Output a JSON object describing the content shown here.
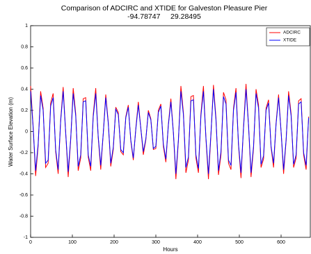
{
  "chart_data": {
    "type": "line",
    "title": "Comparison of ADCIRC and XTIDE for Galveston Pleasure Pier",
    "subtitle": "-94.78747     29.28495",
    "x_label": "Hours",
    "y_label": "Water Surface Elevation (m)",
    "xlim": [
      0,
      670
    ],
    "ylim": [
      -1,
      1
    ],
    "xticks": [
      0,
      100,
      200,
      300,
      400,
      500,
      600
    ],
    "yticks": [
      -1,
      -0.8,
      -0.6,
      -0.4,
      -0.2,
      0,
      0.2,
      0.4,
      0.6,
      0.8,
      1
    ],
    "legend": "upper right",
    "grid": false,
    "x": [
      0,
      6,
      12,
      18,
      24,
      30,
      36,
      42,
      48,
      54,
      60,
      66,
      72,
      78,
      84,
      90,
      96,
      102,
      108,
      114,
      120,
      126,
      132,
      138,
      144,
      150,
      156,
      162,
      168,
      174,
      180,
      186,
      192,
      198,
      204,
      210,
      216,
      222,
      228,
      234,
      240,
      246,
      252,
      258,
      264,
      270,
      276,
      282,
      288,
      294,
      300,
      306,
      312,
      318,
      324,
      330,
      336,
      342,
      348,
      354,
      360,
      366,
      372,
      378,
      384,
      390,
      396,
      402,
      408,
      414,
      420,
      426,
      432,
      438,
      444,
      450,
      456,
      462,
      468,
      474,
      480,
      486,
      492,
      498,
      504,
      510,
      516,
      522,
      528,
      534,
      540,
      546,
      552,
      558,
      564,
      570,
      576,
      582,
      588,
      594,
      600,
      606,
      612,
      618,
      624,
      630,
      636,
      642,
      648,
      654,
      660,
      666
    ],
    "series": [
      {
        "name": "ADCIRC",
        "color": "#ff0000",
        "values": [
          0.43,
          0.05,
          -0.42,
          -0.14,
          0.38,
          0.22,
          -0.34,
          -0.3,
          0.27,
          0.36,
          -0.19,
          -0.4,
          0.11,
          0.42,
          -0.01,
          -0.43,
          -0.08,
          0.41,
          0.17,
          -0.37,
          -0.25,
          0.31,
          0.32,
          -0.24,
          -0.37,
          0.16,
          0.41,
          -0.06,
          -0.36,
          -0.02,
          0.35,
          0.09,
          -0.33,
          -0.17,
          0.23,
          0.18,
          -0.19,
          -0.22,
          0.14,
          0.25,
          -0.09,
          -0.27,
          0.03,
          0.28,
          0.03,
          -0.22,
          -0.08,
          0.2,
          0.12,
          -0.17,
          -0.16,
          0.2,
          0.26,
          -0.14,
          -0.29,
          0.07,
          0.31,
          -0.01,
          -0.45,
          -0.09,
          0.43,
          0.18,
          -0.39,
          -0.27,
          0.33,
          0.34,
          -0.25,
          -0.39,
          0.17,
          0.43,
          -0.07,
          -0.45,
          -0.03,
          0.44,
          0.13,
          -0.41,
          -0.22,
          0.37,
          0.3,
          -0.3,
          -0.36,
          0.22,
          0.41,
          -0.13,
          -0.44,
          0.04,
          0.45,
          0.06,
          -0.43,
          -0.16,
          0.4,
          0.25,
          -0.34,
          -0.26,
          0.22,
          0.3,
          -0.15,
          -0.34,
          0.08,
          0.35,
          0,
          -0.4,
          -0.09,
          0.38,
          0.17,
          -0.34,
          -0.25,
          0.29,
          0.31,
          -0.22,
          -0.36,
          0.14
        ]
      },
      {
        "name": "XTIDE",
        "color": "#0000ff",
        "values": [
          0.38,
          0.04,
          -0.37,
          -0.12,
          0.34,
          0.2,
          -0.3,
          -0.27,
          0.24,
          0.32,
          -0.17,
          -0.36,
          0.1,
          0.38,
          -0.01,
          -0.38,
          -0.07,
          0.36,
          0.15,
          -0.33,
          -0.22,
          0.28,
          0.29,
          -0.22,
          -0.33,
          0.14,
          0.36,
          -0.05,
          -0.32,
          -0.02,
          0.32,
          0.08,
          -0.3,
          -0.15,
          0.21,
          0.16,
          -0.17,
          -0.2,
          0.13,
          0.23,
          -0.08,
          -0.25,
          0.02,
          0.25,
          0.03,
          -0.19,
          -0.07,
          0.18,
          0.11,
          -0.16,
          -0.14,
          0.18,
          0.24,
          -0.12,
          -0.26,
          0.06,
          0.28,
          -0.01,
          -0.4,
          -0.08,
          0.38,
          0.16,
          -0.34,
          -0.24,
          0.29,
          0.3,
          -0.22,
          -0.35,
          0.15,
          0.38,
          -0.06,
          -0.4,
          -0.02,
          0.4,
          0.11,
          -0.37,
          -0.19,
          0.33,
          0.26,
          -0.27,
          -0.32,
          0.2,
          0.37,
          -0.12,
          -0.39,
          0.03,
          0.4,
          0.06,
          -0.39,
          -0.14,
          0.36,
          0.22,
          -0.31,
          -0.23,
          0.2,
          0.27,
          -0.14,
          -0.3,
          0.07,
          0.32,
          0,
          -0.36,
          -0.08,
          0.34,
          0.15,
          -0.31,
          -0.22,
          0.26,
          0.28,
          -0.2,
          -0.32,
          0.13
        ]
      }
    ]
  }
}
